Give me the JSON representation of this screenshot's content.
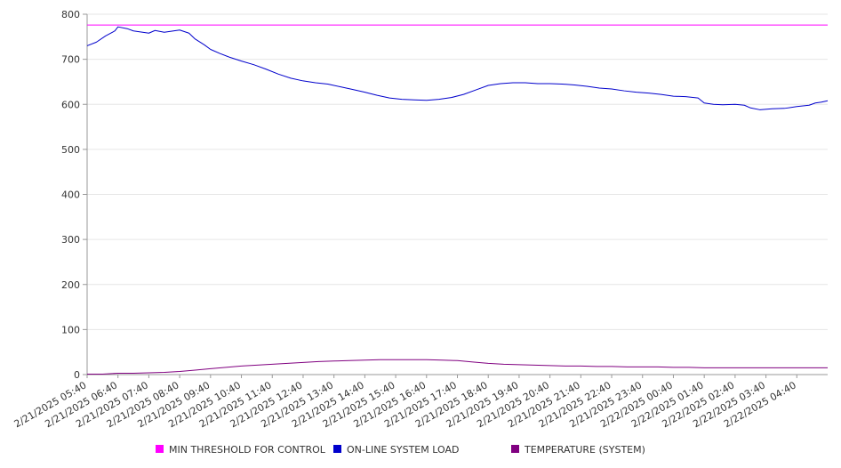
{
  "chart_data": {
    "type": "line",
    "title": "",
    "xlabel": "",
    "ylabel": "",
    "ylim": [
      0,
      800
    ],
    "yticks": [
      0,
      100,
      200,
      300,
      400,
      500,
      600,
      700,
      800
    ],
    "grid": true,
    "legend_position": "bottom",
    "x_ticks": [
      "2/21/2025 05:40",
      "2/21/2025 06:40",
      "2/21/2025 07:40",
      "2/21/2025 08:40",
      "2/21/2025 09:40",
      "2/21/2025 10:40",
      "2/21/2025 11:40",
      "2/21/2025 12:40",
      "2/21/2025 13:40",
      "2/21/2025 14:40",
      "2/21/2025 15:40",
      "2/21/2025 16:40",
      "2/21/2025 17:40",
      "2/21/2025 18:40",
      "2/21/2025 19:40",
      "2/21/2025 20:40",
      "2/21/2025 21:40",
      "2/21/2025 22:40",
      "2/21/2025 23:40",
      "2/22/2025 00:40",
      "2/22/2025 01:40",
      "2/22/2025 02:40",
      "2/22/2025 03:40",
      "2/22/2025 04:40"
    ],
    "x_start": "2/21/2025 05:40",
    "x_end": "2/22/2025 05:40",
    "series": [
      {
        "name": "MIN THRESHOLD FOR CONTROL",
        "color": "#ff00ff",
        "points": [
          [
            0,
            776
          ],
          [
            24,
            776
          ]
        ]
      },
      {
        "name": "ON-LINE SYSTEM LOAD",
        "color": "#0000cc",
        "points": [
          [
            0,
            730
          ],
          [
            0.3,
            738
          ],
          [
            0.6,
            752
          ],
          [
            0.9,
            763
          ],
          [
            1.0,
            772
          ],
          [
            1.3,
            768
          ],
          [
            1.5,
            763
          ],
          [
            1.8,
            760
          ],
          [
            2.0,
            758
          ],
          [
            2.2,
            764
          ],
          [
            2.5,
            760
          ],
          [
            2.8,
            763
          ],
          [
            3.0,
            765
          ],
          [
            3.3,
            758
          ],
          [
            3.5,
            745
          ],
          [
            3.8,
            732
          ],
          [
            4.0,
            722
          ],
          [
            4.3,
            713
          ],
          [
            4.6,
            705
          ],
          [
            5.0,
            696
          ],
          [
            5.4,
            688
          ],
          [
            5.8,
            678
          ],
          [
            6.2,
            667
          ],
          [
            6.6,
            658
          ],
          [
            7.0,
            652
          ],
          [
            7.4,
            648
          ],
          [
            7.8,
            645
          ],
          [
            8.2,
            639
          ],
          [
            8.6,
            633
          ],
          [
            9.0,
            627
          ],
          [
            9.4,
            620
          ],
          [
            9.8,
            614
          ],
          [
            10.2,
            611
          ],
          [
            10.6,
            610
          ],
          [
            11.0,
            609
          ],
          [
            11.4,
            611
          ],
          [
            11.8,
            615
          ],
          [
            12.2,
            622
          ],
          [
            12.6,
            632
          ],
          [
            13.0,
            642
          ],
          [
            13.4,
            646
          ],
          [
            13.8,
            648
          ],
          [
            14.2,
            648
          ],
          [
            14.6,
            646
          ],
          [
            15.0,
            646
          ],
          [
            15.4,
            645
          ],
          [
            15.8,
            643
          ],
          [
            16.2,
            640
          ],
          [
            16.6,
            636
          ],
          [
            17.0,
            634
          ],
          [
            17.4,
            630
          ],
          [
            17.8,
            627
          ],
          [
            18.2,
            625
          ],
          [
            18.6,
            622
          ],
          [
            19.0,
            618
          ],
          [
            19.4,
            617
          ],
          [
            19.8,
            614
          ],
          [
            20.0,
            603
          ],
          [
            20.3,
            600
          ],
          [
            20.6,
            599
          ],
          [
            21.0,
            600
          ],
          [
            21.3,
            598
          ],
          [
            21.5,
            592
          ],
          [
            21.8,
            588
          ],
          [
            22.2,
            590
          ],
          [
            22.6,
            591
          ],
          [
            23.0,
            595
          ],
          [
            23.4,
            598
          ],
          [
            23.6,
            603
          ],
          [
            23.8,
            605
          ],
          [
            24.0,
            608
          ]
        ]
      },
      {
        "name": "TEMPERATURE (SYSTEM)",
        "color": "#800080",
        "points": [
          [
            0,
            1
          ],
          [
            0.5,
            1
          ],
          [
            1.0,
            3
          ],
          [
            1.5,
            3
          ],
          [
            2.0,
            4
          ],
          [
            2.5,
            5
          ],
          [
            3.0,
            7
          ],
          [
            3.5,
            10
          ],
          [
            4.0,
            13
          ],
          [
            4.5,
            16
          ],
          [
            5.0,
            19
          ],
          [
            5.5,
            21
          ],
          [
            6.0,
            23
          ],
          [
            6.5,
            25
          ],
          [
            7.0,
            27
          ],
          [
            7.5,
            29
          ],
          [
            8.0,
            30
          ],
          [
            8.5,
            31
          ],
          [
            9.0,
            32
          ],
          [
            9.5,
            33
          ],
          [
            10.0,
            33
          ],
          [
            10.5,
            33
          ],
          [
            11.0,
            33
          ],
          [
            11.5,
            32
          ],
          [
            12.0,
            31
          ],
          [
            12.5,
            28
          ],
          [
            13.0,
            25
          ],
          [
            13.5,
            23
          ],
          [
            14.0,
            22
          ],
          [
            14.5,
            21
          ],
          [
            15.0,
            20
          ],
          [
            15.5,
            19
          ],
          [
            16.0,
            19
          ],
          [
            16.5,
            18
          ],
          [
            17.0,
            18
          ],
          [
            17.5,
            17
          ],
          [
            18.0,
            17
          ],
          [
            18.5,
            17
          ],
          [
            19.0,
            16
          ],
          [
            19.5,
            16
          ],
          [
            20.0,
            15
          ],
          [
            20.5,
            15
          ],
          [
            21.0,
            15
          ],
          [
            22.0,
            15
          ],
          [
            23.0,
            15
          ],
          [
            24.0,
            15
          ]
        ]
      }
    ]
  }
}
